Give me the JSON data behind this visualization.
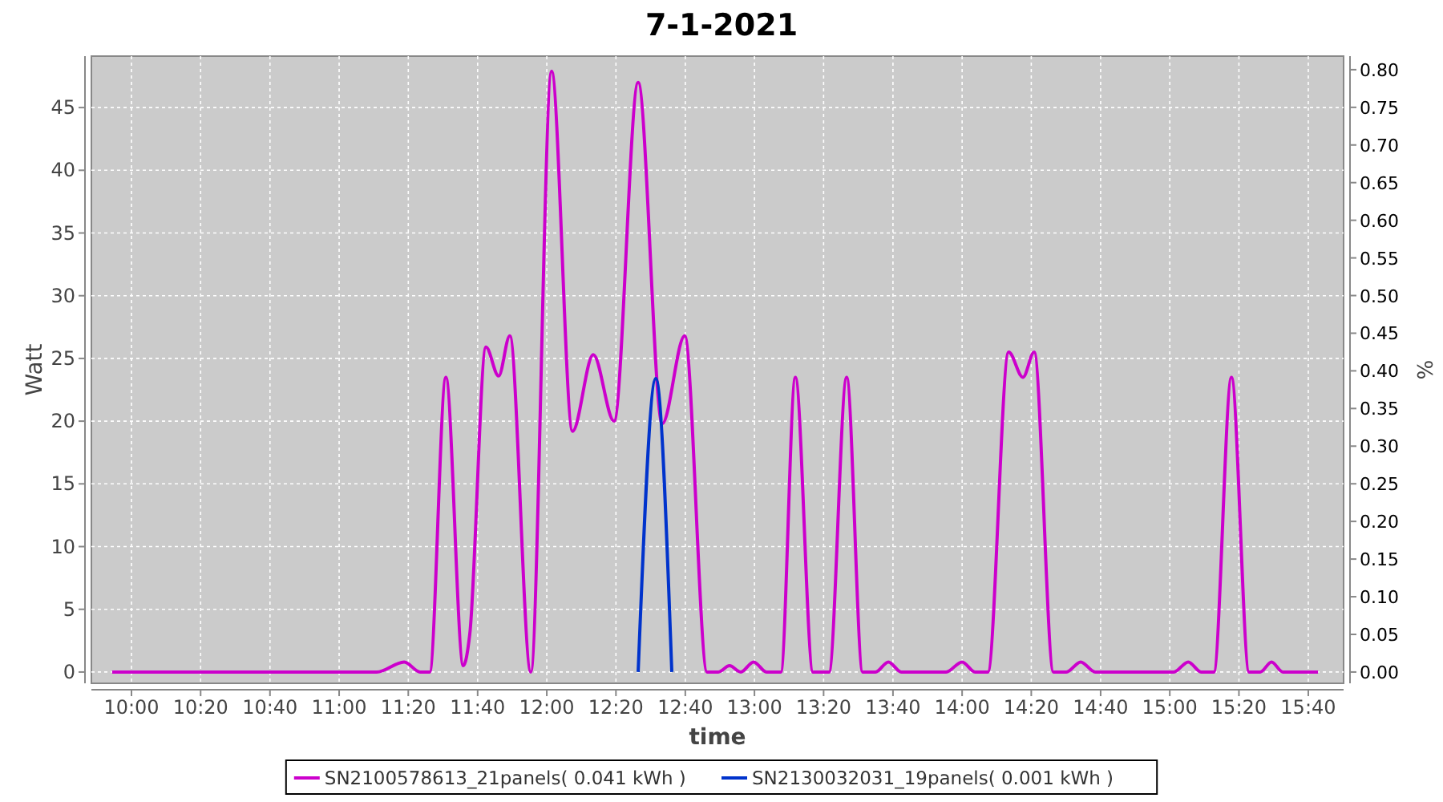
{
  "chart_data": {
    "type": "line",
    "title": "7-1-2021",
    "xlabel": "time",
    "ylabel": "Watt",
    "y2label": "%",
    "xlim": [
      9.807,
      15.837
    ],
    "xticks": [
      {
        "value": 10,
        "label": "10:00"
      },
      {
        "value": 10.333,
        "label": "10:20"
      },
      {
        "value": 10.667,
        "label": "10:40"
      },
      {
        "value": 11,
        "label": "11:00"
      },
      {
        "value": 11.333,
        "label": "11:20"
      },
      {
        "value": 11.667,
        "label": "11:40"
      },
      {
        "value": 12,
        "label": "12:00"
      },
      {
        "value": 12.333,
        "label": "12:20"
      },
      {
        "value": 12.667,
        "label": "12:40"
      },
      {
        "value": 13,
        "label": "13:00"
      },
      {
        "value": 13.333,
        "label": "13:20"
      },
      {
        "value": 13.667,
        "label": "13:40"
      },
      {
        "value": 14,
        "label": "14:00"
      },
      {
        "value": 14.333,
        "label": "14:20"
      },
      {
        "value": 14.667,
        "label": "14:40"
      },
      {
        "value": 15,
        "label": "15:00"
      },
      {
        "value": 15.333,
        "label": "15:20"
      },
      {
        "value": 15.667,
        "label": "15:40"
      }
    ],
    "ylim": [
      -0.9,
      49.1
    ],
    "yticks": [
      0,
      5,
      10,
      15,
      20,
      25,
      30,
      35,
      40,
      45
    ],
    "y2lim": [
      -0.015,
      0.818
    ],
    "y2ticks": [
      {
        "value": 0,
        "label": "0.00"
      },
      {
        "value": 0.05,
        "label": "0.05"
      },
      {
        "value": 0.1,
        "label": "0.10"
      },
      {
        "value": 0.15,
        "label": "0.15"
      },
      {
        "value": 0.2,
        "label": "0.20"
      },
      {
        "value": 0.25,
        "label": "0.25"
      },
      {
        "value": 0.3,
        "label": "0.30"
      },
      {
        "value": 0.35,
        "label": "0.35"
      },
      {
        "value": 0.4,
        "label": "0.40"
      },
      {
        "value": 0.45,
        "label": "0.45"
      },
      {
        "value": 0.5,
        "label": "0.50"
      },
      {
        "value": 0.55,
        "label": "0.55"
      },
      {
        "value": 0.6,
        "label": "0.60"
      },
      {
        "value": 0.65,
        "label": "0.65"
      },
      {
        "value": 0.7,
        "label": "0.70"
      },
      {
        "value": 0.75,
        "label": "0.75"
      },
      {
        "value": 0.8,
        "label": "0.80"
      }
    ],
    "grid": true,
    "legend": "bottom",
    "line_style": "solid",
    "series": [
      {
        "name": "SN2100578613_21panels( 0.041 kWh )",
        "color": "#cc00cc",
        "x": [
          9.907,
          11.181,
          11.313,
          11.39,
          11.436,
          11.514,
          11.598,
          11.629,
          11.707,
          11.768,
          11.822,
          11.923,
          12.023,
          12.124,
          12.224,
          12.324,
          12.44,
          12.556,
          12.664,
          12.772,
          12.826,
          12.88,
          12.934,
          12.996,
          13.058,
          13.127,
          13.197,
          13.282,
          13.359,
          13.444,
          13.521,
          13.583,
          13.645,
          13.707,
          13.846,
          13.923,
          14.0,
          14.062,
          14.124,
          14.224,
          14.293,
          14.347,
          14.44,
          14.502,
          14.571,
          14.641,
          14.927,
          15.019,
          15.089,
          15.151,
          15.212,
          15.297,
          15.382,
          15.436,
          15.49,
          15.544,
          15.714
        ],
        "values": [
          0,
          0,
          0.8,
          0,
          0,
          23.5,
          0.5,
          3,
          25.9,
          23.6,
          26.8,
          0,
          47.9,
          19.2,
          25.3,
          20,
          47,
          19.8,
          26.8,
          0,
          0,
          0.5,
          0,
          0.8,
          0,
          0,
          23.5,
          0,
          0,
          23.5,
          0,
          0,
          0.8,
          0,
          0,
          0,
          0.8,
          0,
          0,
          25.5,
          23.5,
          25.5,
          0,
          0,
          0.8,
          0,
          0,
          0,
          0.8,
          0,
          0,
          23.5,
          0,
          0,
          0.8,
          0,
          0
        ]
      },
      {
        "name": "SN2130032031_19panels( 0.001 kWh )",
        "color": "#0033cc",
        "x": [
          12.44,
          12.525,
          12.602
        ],
        "values": [
          0,
          23.4,
          0
        ]
      }
    ]
  }
}
